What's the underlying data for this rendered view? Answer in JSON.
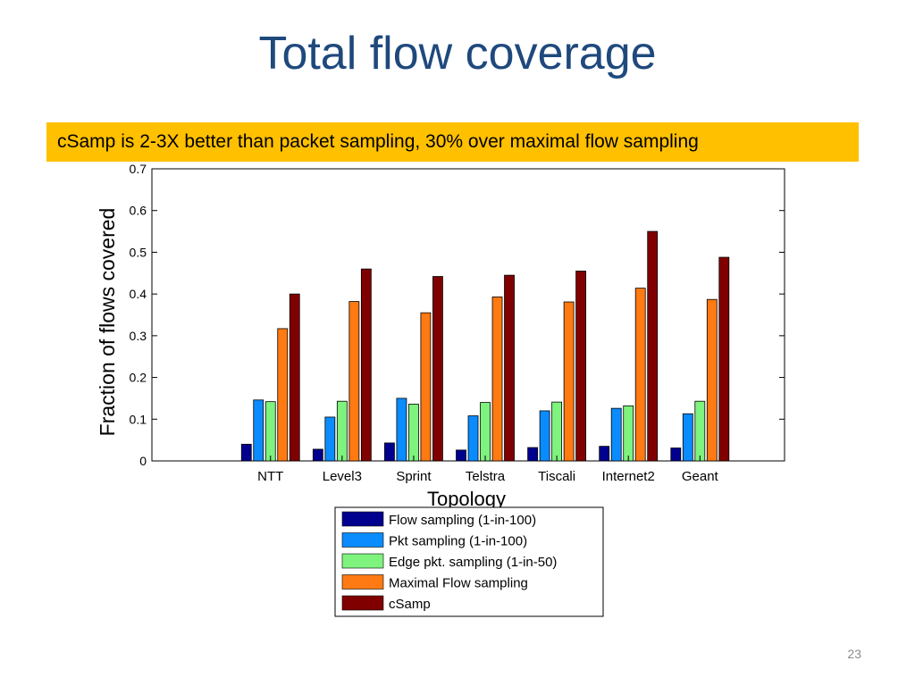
{
  "slide": {
    "title": "Total flow coverage",
    "banner": "cSamp is 2-3X better than packet sampling, 30% over maximal flow sampling",
    "page_number": "23"
  },
  "colors": {
    "title": "#1f497d",
    "banner_bg": "#ffc000"
  },
  "chart_data": {
    "type": "bar",
    "title": "",
    "xlabel": "Topology",
    "ylabel": "Fraction of flows covered",
    "ylim": [
      0,
      0.7
    ],
    "yticks": [
      "0",
      "0.1",
      "0.2",
      "0.3",
      "0.4",
      "0.5",
      "0.6",
      "0.7"
    ],
    "categories": [
      "NTT",
      "Level3",
      "Sprint",
      "Telstra",
      "Tiscali",
      "Internet2",
      "Geant"
    ],
    "grid": false,
    "legend_position": "below",
    "series": [
      {
        "name": "Flow sampling (1-in-100)",
        "color": "#00008f",
        "values": [
          0.04,
          0.028,
          0.043,
          0.026,
          0.032,
          0.035,
          0.031
        ]
      },
      {
        "name": "Pkt sampling (1-in-100)",
        "color": "#0a8cff",
        "values": [
          0.146,
          0.105,
          0.15,
          0.108,
          0.12,
          0.126,
          0.113
        ]
      },
      {
        "name": "Edge pkt. sampling (1-in-50)",
        "color": "#7ef37e",
        "values": [
          0.142,
          0.143,
          0.136,
          0.14,
          0.141,
          0.132,
          0.143
        ]
      },
      {
        "name": "Maximal Flow sampling",
        "color": "#ff7a12",
        "values": [
          0.317,
          0.382,
          0.355,
          0.393,
          0.381,
          0.414,
          0.387
        ]
      },
      {
        "name": "cSamp",
        "color": "#800000",
        "values": [
          0.4,
          0.46,
          0.442,
          0.445,
          0.455,
          0.55,
          0.488
        ]
      }
    ]
  }
}
